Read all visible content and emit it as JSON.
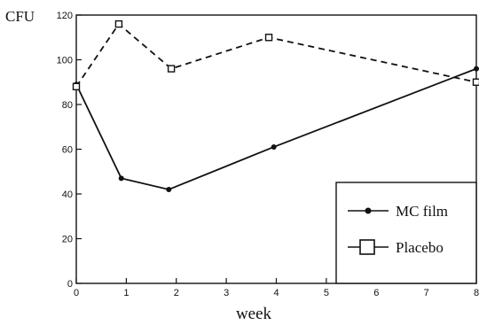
{
  "chart_data": {
    "type": "line",
    "title": "",
    "xlabel": "week",
    "ylabel": "CFU",
    "x_ticks": [
      "0",
      "1",
      "2",
      "3",
      "4",
      "5",
      "6",
      "7",
      "8"
    ],
    "y_ticks": [
      "0",
      "20",
      "40",
      "60",
      "80",
      "100",
      "120"
    ],
    "xlim": [
      0,
      8
    ],
    "ylim": [
      0,
      120
    ],
    "grid": false,
    "legend_position": "bottom-right",
    "series": [
      {
        "name": "MC film",
        "line_style": "solid",
        "marker": "filled-circle",
        "color": "#111111",
        "points": [
          {
            "x": 0,
            "y": 89
          },
          {
            "x": 0.9,
            "y": 47
          },
          {
            "x": 1.85,
            "y": 42
          },
          {
            "x": 3.95,
            "y": 61
          },
          {
            "x": 8,
            "y": 96
          }
        ]
      },
      {
        "name": "Placebo",
        "line_style": "dashed",
        "marker": "open-square",
        "color": "#111111",
        "points": [
          {
            "x": 0,
            "y": 88
          },
          {
            "x": 0.85,
            "y": 116
          },
          {
            "x": 1.9,
            "y": 96
          },
          {
            "x": 3.85,
            "y": 110
          },
          {
            "x": 8,
            "y": 90
          }
        ]
      }
    ]
  }
}
